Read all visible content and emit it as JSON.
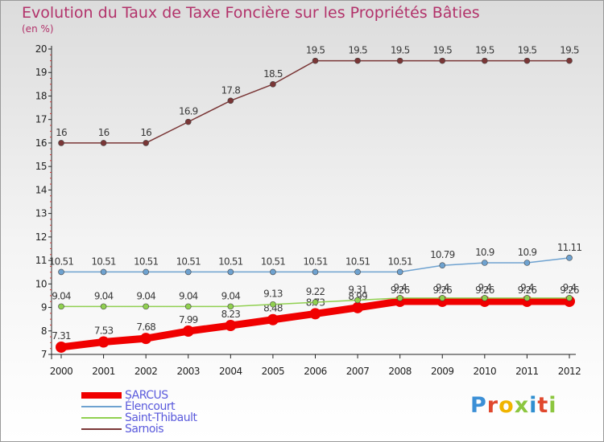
{
  "header": {
    "title": "Evolution du Taux de Taxe Foncière sur les Propriétés Bâties",
    "unit": "(en %)"
  },
  "brand": {
    "name": "Proxiti",
    "letter_colors": [
      "#3b8fd6",
      "#e0482d",
      "#f0b400",
      "#8cc63f",
      "#2f8fd0",
      "#e0482d",
      "#8cc63f"
    ]
  },
  "chart_data": {
    "type": "line",
    "categories": [
      "2000",
      "2001",
      "2002",
      "2003",
      "2004",
      "2005",
      "2006",
      "2007",
      "2008",
      "2009",
      "2010",
      "2011",
      "2012"
    ],
    "ylim": [
      7,
      20
    ],
    "yticks": [
      7,
      8,
      9,
      10,
      11,
      12,
      13,
      14,
      15,
      16,
      17,
      18,
      19,
      20
    ],
    "grid": false,
    "legend_position": "bottom-left",
    "series": [
      {
        "name": "SARCUS",
        "color": "#f00000",
        "emphasis": true,
        "values": [
          7.31,
          7.53,
          7.68,
          7.99,
          8.23,
          8.48,
          8.73,
          8.99,
          9.26,
          9.26,
          9.26,
          9.26,
          9.26
        ],
        "labels": [
          "7.31",
          "7.53",
          "7.68",
          "7.99",
          "8.23",
          "8.48",
          "8.73",
          "8.99",
          "9.26",
          "9.26",
          "9.26",
          "9.26",
          "9.26"
        ]
      },
      {
        "name": "Élencourt",
        "color": "#6ea2d0",
        "values": [
          10.51,
          10.51,
          10.51,
          10.51,
          10.51,
          10.51,
          10.51,
          10.51,
          10.51,
          10.79,
          10.9,
          10.9,
          11.11
        ],
        "labels": [
          "10.51",
          "10.51",
          "10.51",
          "10.51",
          "10.51",
          "10.51",
          "10.51",
          "10.51",
          "10.51",
          "10.79",
          "10.9",
          "10.9",
          "11.11"
        ]
      },
      {
        "name": "Saint-Thibault",
        "color": "#90d050",
        "values": [
          9.04,
          9.04,
          9.04,
          9.04,
          9.04,
          9.13,
          9.22,
          9.31,
          9.4,
          9.4,
          9.4,
          9.4,
          9.4
        ],
        "labels": [
          "9.04",
          "9.04",
          "9.04",
          "9.04",
          "9.04",
          "9.13",
          "9.22",
          "9.31",
          "9.4",
          "9.4",
          "9.4",
          "9.4",
          "9.4"
        ]
      },
      {
        "name": "Sarnois",
        "color": "#7a3636",
        "values": [
          16,
          16,
          16,
          16.9,
          17.8,
          18.5,
          19.5,
          19.5,
          19.5,
          19.5,
          19.5,
          19.5,
          19.5
        ],
        "labels": [
          "16",
          "16",
          "16",
          "16.9",
          "17.8",
          "18.5",
          "19.5",
          "19.5",
          "19.5",
          "19.5",
          "19.5",
          "19.5",
          "19.5"
        ]
      }
    ]
  }
}
